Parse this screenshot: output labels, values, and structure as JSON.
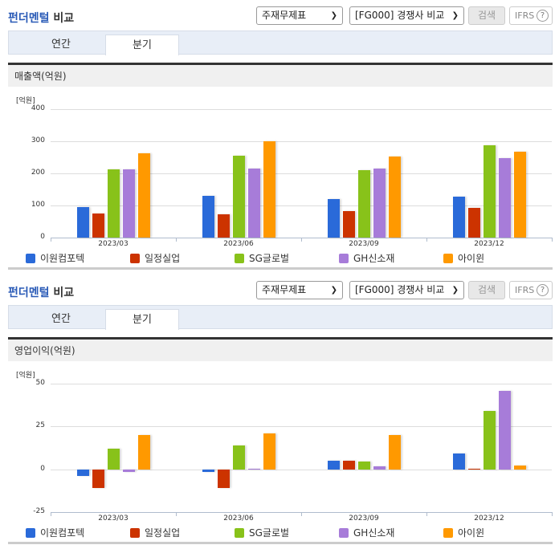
{
  "sections": [
    {
      "title_blue": "펀더멘털",
      "title_rest": " 비교",
      "select_statement": "주재무제표",
      "select_compare": "[FG000] 경쟁사 비교",
      "search_label": "검색",
      "ifrs_label": "IFRS",
      "ifrs_help": "?",
      "tabs": [
        {
          "label": "연간",
          "active": false
        },
        {
          "label": "분기",
          "active": true
        }
      ],
      "metric_title": "매출액(억원)",
      "unit": "[억원]"
    },
    {
      "title_blue": "펀더멘털",
      "title_rest": " 비교",
      "select_statement": "주재무제표",
      "select_compare": "[FG000] 경쟁사 비교",
      "search_label": "검색",
      "ifrs_label": "IFRS",
      "ifrs_help": "?",
      "tabs": [
        {
          "label": "연간",
          "active": false
        },
        {
          "label": "분기",
          "active": true
        }
      ],
      "metric_title": "영업이익(억원)",
      "unit": "[억원]"
    }
  ],
  "colors": {
    "이원컴포텍": "#2a6ad9",
    "일정실업": "#cc3300",
    "SG글로벌": "#88c21a",
    "GH신소재": "#a77cd9",
    "아이윈": "#ff9900"
  },
  "chart_data": [
    {
      "type": "bar",
      "title": "매출액(억원)",
      "ylabel": "[억원]",
      "xlabel": "",
      "ylim": [
        0,
        400
      ],
      "yticks": [
        0,
        100,
        200,
        300,
        400
      ],
      "grid": true,
      "legend_position": "bottom",
      "categories": [
        "2023/03",
        "2023/06",
        "2023/09",
        "2023/12"
      ],
      "series": [
        {
          "name": "이원컴포텍",
          "values": [
            95,
            130,
            120,
            127
          ]
        },
        {
          "name": "일정실업",
          "values": [
            75,
            72,
            82,
            93
          ]
        },
        {
          "name": "SG글로벌",
          "values": [
            212,
            255,
            210,
            287
          ]
        },
        {
          "name": "GH신소재",
          "values": [
            212,
            215,
            215,
            247
          ]
        },
        {
          "name": "아이윈",
          "values": [
            262,
            300,
            252,
            267
          ]
        }
      ]
    },
    {
      "type": "bar",
      "title": "영업이익(억원)",
      "ylabel": "[억원]",
      "xlabel": "",
      "ylim": [
        -25,
        50
      ],
      "yticks": [
        -25,
        0,
        25,
        50
      ],
      "grid": true,
      "legend_position": "bottom",
      "categories": [
        "2023/03",
        "2023/06",
        "2023/09",
        "2023/12"
      ],
      "series": [
        {
          "name": "이원컴포텍",
          "values": [
            -4,
            -1.5,
            5,
            9
          ]
        },
        {
          "name": "일정실업",
          "values": [
            -11,
            -11,
            5,
            0.5
          ]
        },
        {
          "name": "SG글로벌",
          "values": [
            12,
            14,
            4.5,
            34
          ]
        },
        {
          "name": "GH신소재",
          "values": [
            -1.5,
            0.5,
            1.5,
            46
          ]
        },
        {
          "name": "아이윈",
          "values": [
            20,
            21,
            20,
            2
          ]
        }
      ]
    }
  ]
}
